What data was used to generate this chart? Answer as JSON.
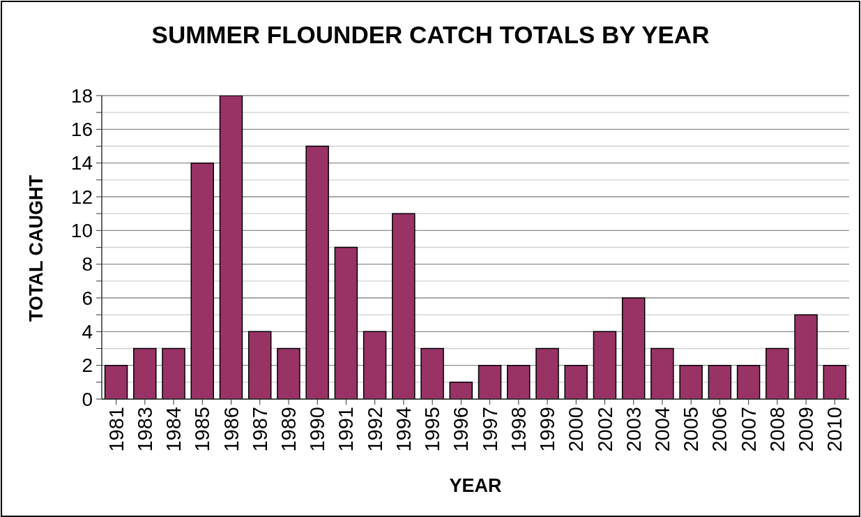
{
  "chart_data": {
    "type": "bar",
    "title": "SUMMER FLOUNDER CATCH TOTALS BY YEAR",
    "xlabel": "YEAR",
    "ylabel": "TOTAL CAUGHT",
    "categories": [
      "1981",
      "1983",
      "1984",
      "1985",
      "1986",
      "1987",
      "1989",
      "1990",
      "1991",
      "1992",
      "1994",
      "1995",
      "1996",
      "1997",
      "1998",
      "1999",
      "2000",
      "2002",
      "2003",
      "2004",
      "2005",
      "2006",
      "2007",
      "2008",
      "2009",
      "2010"
    ],
    "values": [
      2,
      3,
      3,
      14,
      18,
      4,
      3,
      15,
      9,
      4,
      11,
      3,
      1,
      2,
      2,
      3,
      2,
      4,
      6,
      3,
      2,
      2,
      2,
      3,
      5,
      2
    ],
    "color": "#993366",
    "ylim": [
      0,
      18
    ],
    "yticks": [
      0,
      {
        "value": 1,
        "label": null
      },
      2,
      {
        "value": 3,
        "label": null
      },
      4,
      {
        "value": 5,
        "label": null
      },
      6,
      {
        "value": 7,
        "label": null
      },
      8,
      {
        "value": 9,
        "label": null
      },
      10,
      {
        "value": 11,
        "label": null
      },
      12,
      {
        "value": 13,
        "label": null
      },
      14,
      {
        "value": 15,
        "label": null
      },
      16,
      {
        "value": 17,
        "label": null
      },
      18
    ],
    "grid": "y"
  }
}
